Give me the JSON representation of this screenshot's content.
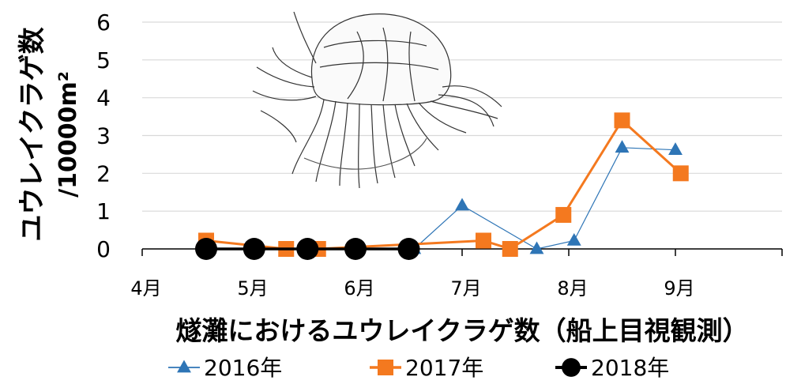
{
  "chart_data": {
    "type": "line",
    "ylabel_line1": "ユウレイクラゲ数",
    "ylabel_line2": "/10000m²",
    "xlabel": "燧灘におけるユウレイクラゲ数（船上目視観測）",
    "ylim": [
      0,
      6
    ],
    "yticks": [
      "0",
      "1",
      "2",
      "3",
      "4",
      "5",
      "6"
    ],
    "xlim": [
      4,
      10
    ],
    "xticks": [
      {
        "value": 4,
        "label": "4月"
      },
      {
        "value": 5,
        "label": "5月"
      },
      {
        "value": 6,
        "label": "6月"
      },
      {
        "value": 7,
        "label": "7月"
      },
      {
        "value": 8,
        "label": "8月"
      },
      {
        "value": 9,
        "label": "9月"
      }
    ],
    "grid": "horizontal",
    "legend": "bottom",
    "series": [
      {
        "name": "2016年",
        "color": "#2E75B6",
        "marker": "triangle",
        "points": [
          [
            6.55,
            0
          ],
          [
            7.0,
            1.15
          ],
          [
            7.7,
            0
          ],
          [
            8.05,
            0.22
          ],
          [
            8.5,
            2.68
          ],
          [
            9.0,
            2.62
          ]
        ]
      },
      {
        "name": "2017年",
        "color": "#F4791F",
        "marker": "square",
        "points": [
          [
            4.6,
            0.22
          ],
          [
            5.35,
            0
          ],
          [
            5.65,
            0
          ],
          [
            7.2,
            0.22
          ],
          [
            7.45,
            0
          ],
          [
            7.95,
            0.9
          ],
          [
            8.5,
            3.4
          ],
          [
            9.05,
            2.0
          ]
        ]
      },
      {
        "name": "2018年",
        "color": "#000000",
        "marker": "circle",
        "points": [
          [
            4.6,
            0
          ],
          [
            5.05,
            0
          ],
          [
            5.55,
            0
          ],
          [
            6.0,
            0
          ],
          [
            6.5,
            0
          ]
        ]
      }
    ]
  },
  "illustration": {
    "subject": "jellyfish-drawing"
  }
}
